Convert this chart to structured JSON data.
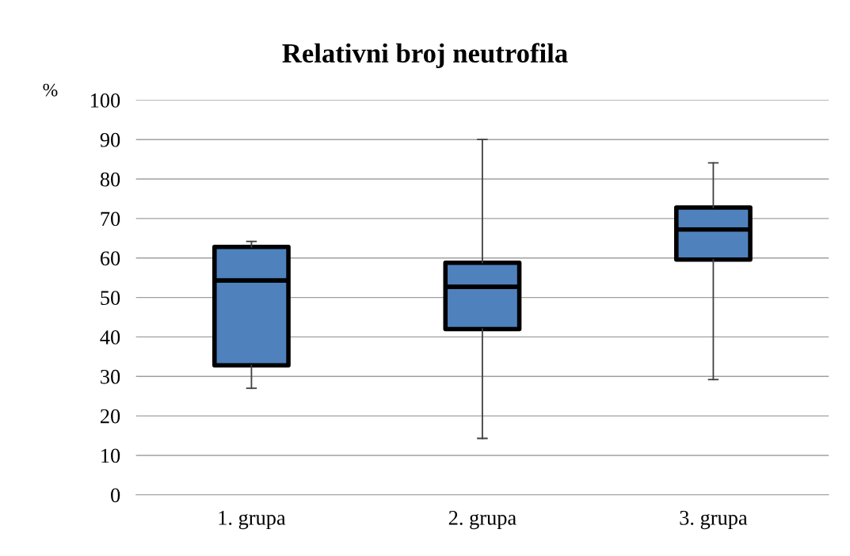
{
  "chart_data": {
    "type": "box",
    "title": "Relativni broj neutrofila",
    "ylabel": "%",
    "categories": [
      "1. grupa",
      "2. grupa",
      "3. grupa"
    ],
    "boxes": [
      {
        "low": 27,
        "q1": 32.8,
        "median": 54.3,
        "q3": 62.8,
        "high": 64.2
      },
      {
        "low": 14.3,
        "q1": 42,
        "median": 52.7,
        "q3": 58.8,
        "high": 90
      },
      {
        "low": 29.2,
        "q1": 59.6,
        "median": 67.2,
        "q3": 72.8,
        "high": 84.1
      }
    ],
    "color": "#4f81bd",
    "ylim": [
      0,
      100
    ],
    "yticks": [
      0,
      10,
      20,
      30,
      40,
      50,
      60,
      70,
      80,
      90,
      100
    ],
    "grid": "y"
  }
}
